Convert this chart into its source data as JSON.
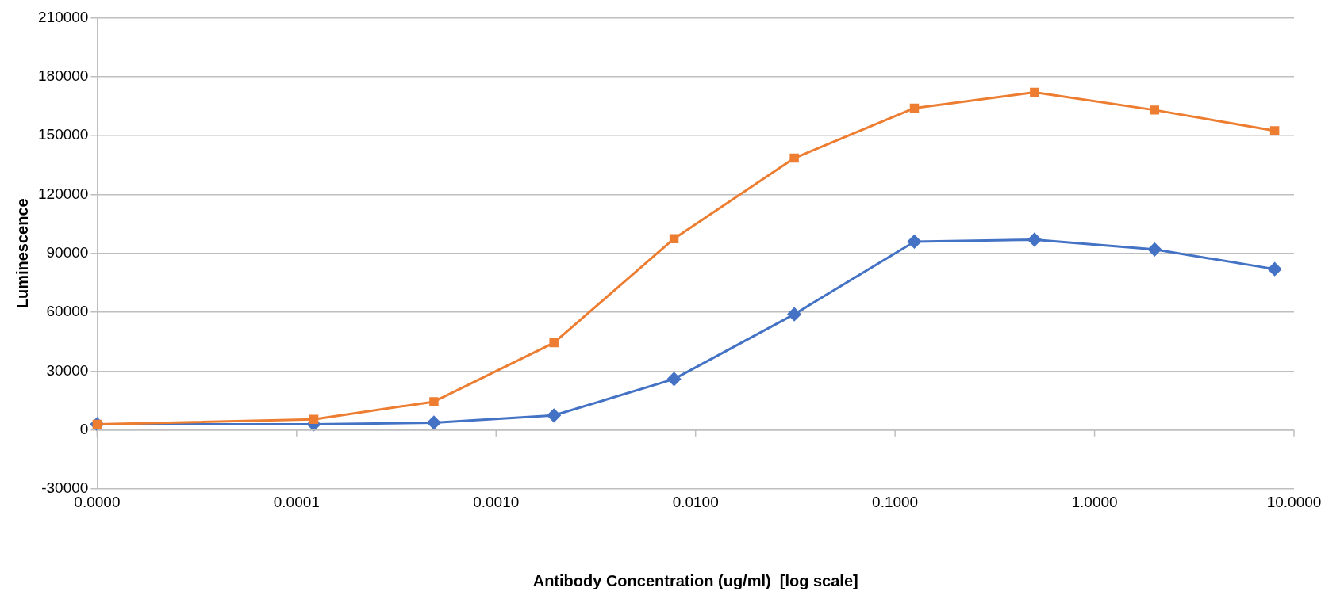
{
  "chart_data": {
    "type": "line",
    "xlabel": "Antibody Concentration (ug/ml)  [log scale]",
    "ylabel": "Luminescence",
    "x": [
      1e-05,
      0.000122,
      0.000488,
      0.00195,
      0.0078,
      0.03125,
      0.125,
      0.5,
      2,
      8
    ],
    "series": [
      {
        "color": "#4472c4",
        "marker": "diamond",
        "values": [
          3000,
          3000,
          3800,
          7500,
          26000,
          59000,
          96000,
          97000,
          92000,
          82000
        ]
      },
      {
        "color": "#ed7d31",
        "marker": "square",
        "values": [
          3000,
          5500,
          14500,
          44500,
          97500,
          138500,
          164000,
          172000,
          163000,
          152500
        ]
      }
    ],
    "log": "x",
    "xlim": [
      1e-05,
      10
    ],
    "xticks": [
      {
        "value": 1e-05,
        "label": "0.0000"
      },
      {
        "value": 0.0001,
        "label": "0.0001"
      },
      {
        "value": 0.001,
        "label": "0.0010"
      },
      {
        "value": 0.01,
        "label": "0.0100"
      },
      {
        "value": 0.1,
        "label": "0.1000"
      },
      {
        "value": 1,
        "label": "1.0000"
      },
      {
        "value": 10,
        "label": "10.0000"
      }
    ],
    "ylim": [
      -30000,
      210000
    ],
    "yticks": [
      -30000,
      0,
      30000,
      60000,
      90000,
      120000,
      150000,
      180000,
      210000
    ],
    "grid": "y",
    "legend": false,
    "line_style": "solid"
  }
}
